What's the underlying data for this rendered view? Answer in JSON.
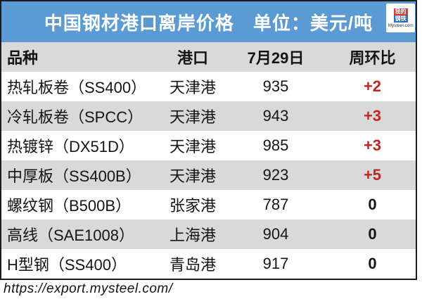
{
  "title_bar": {
    "title": "中国钢材港口离岸价格　单位：美元/吨"
  },
  "logo": {
    "icon_top": "我的",
    "icon_bottom": "钢铁",
    "caption": "Mysteel.com"
  },
  "table": {
    "headers": {
      "variety": "品种",
      "port": "港口",
      "date": "7月29日",
      "wow": "周环比"
    },
    "rows": [
      {
        "variety": "热轧板卷（SS400）",
        "port": "天津港",
        "price": "935",
        "change": "+2"
      },
      {
        "variety": "冷轧板卷（SPCC）",
        "port": "天津港",
        "price": "943",
        "change": "+3"
      },
      {
        "variety": "热镀锌（DX51D）",
        "port": "天津港",
        "price": "985",
        "change": "+3"
      },
      {
        "variety": "中厚板（SS400B）",
        "port": "天津港",
        "price": "923",
        "change": "+5"
      },
      {
        "variety": "螺纹钢（B500B）",
        "port": "张家港",
        "price": "787",
        "change": "0"
      },
      {
        "variety": "高线（SAE1008）",
        "port": "上海港",
        "price": "904",
        "change": "0"
      },
      {
        "variety": "H型钢（SS400）",
        "port": "青岛港",
        "price": "917",
        "change": "0"
      }
    ]
  },
  "footer": {
    "url": "https://export.mysteel.com/"
  },
  "colors": {
    "header_blue": "#5b9ad2",
    "stripe_gray": "#d9d9d9",
    "change_red": "#c0261f",
    "border_black": "#1b1b1b",
    "logo_red": "#d6372e",
    "logo_blue": "#2f6db5"
  },
  "chart_data": {
    "type": "table",
    "title": "中国钢材港口离岸价格",
    "unit": "美元/吨",
    "columns": [
      "品种",
      "港口",
      "7月29日",
      "周环比"
    ],
    "rows": [
      [
        "热轧板卷（SS400）",
        "天津港",
        935,
        "+2"
      ],
      [
        "冷轧板卷（SPCC）",
        "天津港",
        943,
        "+3"
      ],
      [
        "热镀锌（DX51D）",
        "天津港",
        985,
        "+3"
      ],
      [
        "中厚板（SS400B）",
        "天津港",
        923,
        "+5"
      ],
      [
        "螺纹钢（B500B）",
        "张家港",
        787,
        "0"
      ],
      [
        "高线（SAE1008）",
        "上海港",
        904,
        "0"
      ],
      [
        "H型钢（SS400）",
        "青岛港",
        917,
        "0"
      ]
    ]
  }
}
